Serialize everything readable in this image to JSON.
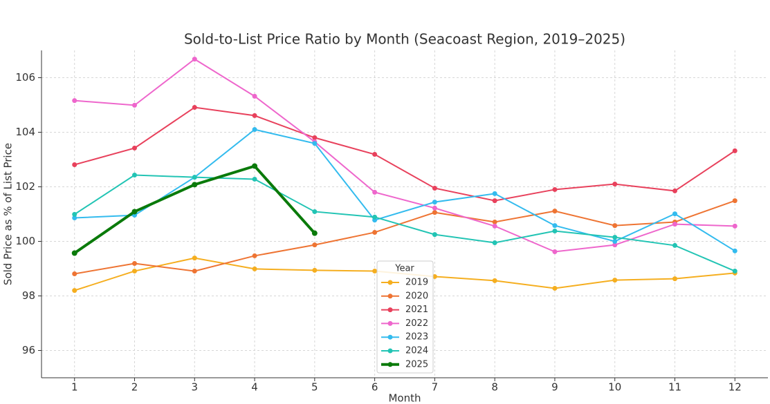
{
  "chart_data": {
    "type": "line",
    "title": "Sold-to-List Price Ratio by Month (Seacoast Region, 2019–2025)",
    "xlabel": "Month",
    "ylabel": "Sold Price as % of List Price",
    "legend_title": "Year",
    "legend": "lower center",
    "grid": true,
    "x": [
      1,
      2,
      3,
      4,
      5,
      6,
      7,
      8,
      9,
      10,
      11,
      12
    ],
    "xlim": [
      0.45,
      12.55
    ],
    "xticks": [
      1,
      2,
      3,
      4,
      5,
      6,
      7,
      8,
      9,
      10,
      11,
      12
    ],
    "ylim": [
      95,
      107
    ],
    "yticks": [
      96,
      98,
      100,
      102,
      104,
      106
    ],
    "series": [
      {
        "name": "2019",
        "color": "#f5ae1f",
        "values": [
          98.2,
          98.91,
          99.39,
          98.99,
          98.94,
          98.91,
          98.71,
          98.56,
          98.28,
          98.58,
          98.63,
          98.84
        ]
      },
      {
        "name": "2020",
        "color": "#ee7433",
        "values": [
          98.81,
          99.19,
          98.91,
          99.47,
          99.87,
          100.33,
          101.06,
          100.71,
          101.11,
          100.58,
          100.71,
          101.49
        ]
      },
      {
        "name": "2021",
        "color": "#e8415c",
        "values": [
          102.81,
          103.42,
          104.91,
          104.61,
          103.8,
          103.19,
          101.95,
          101.49,
          101.9,
          102.1,
          101.85,
          103.32
        ]
      },
      {
        "name": "2022",
        "color": "#ee66cc",
        "values": [
          105.16,
          104.99,
          106.68,
          105.32,
          103.65,
          101.8,
          101.22,
          100.56,
          99.62,
          99.87,
          100.63,
          100.56
        ]
      },
      {
        "name": "2023",
        "color": "#33bbee",
        "values": [
          100.86,
          100.96,
          102.35,
          104.1,
          103.59,
          100.78,
          101.44,
          101.75,
          100.58,
          100.0,
          101.01,
          99.65
        ]
      },
      {
        "name": "2024",
        "color": "#22c4b4",
        "values": [
          100.99,
          102.43,
          102.35,
          102.28,
          101.09,
          100.89,
          100.25,
          99.95,
          100.38,
          100.15,
          99.85,
          98.91
        ]
      },
      {
        "name": "2025",
        "color": "#0a7a0a",
        "values": [
          99.57,
          101.09,
          102.08,
          102.76,
          100.3,
          null,
          null,
          null,
          null,
          null,
          null,
          null
        ]
      }
    ]
  }
}
